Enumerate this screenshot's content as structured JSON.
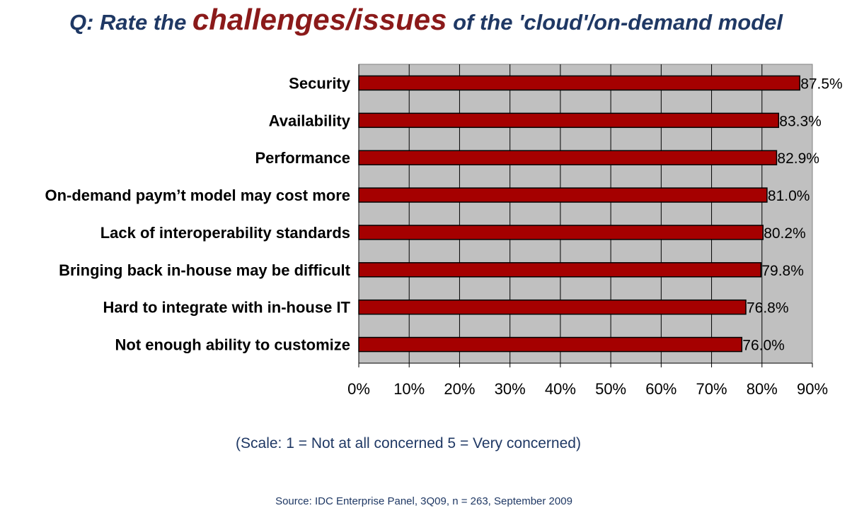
{
  "title": {
    "part1": "Q: Rate the ",
    "emphasis": "challenges/issues",
    "part2": " of the 'cloud'/on-demand model"
  },
  "colors": {
    "bar_fill": "#a50000",
    "plot_background": "#c0c0c0",
    "title_text": "#1f3864",
    "title_emphasis": "#8b1a1a"
  },
  "chart_data": {
    "type": "bar",
    "orientation": "horizontal",
    "categories": [
      "Security",
      "Availability",
      "Performance",
      "On-demand paym’t model may cost more",
      "Lack of interoperability standards",
      "Bringing back in-house may be difficult",
      "Hard to integrate with in-house IT",
      "Not enough ability to customize"
    ],
    "values": [
      87.5,
      83.3,
      82.9,
      81.0,
      80.2,
      79.8,
      76.8,
      76.0
    ],
    "value_labels": [
      "87.5%",
      "83.3%",
      "82.9%",
      "81.0%",
      "80.2%",
      "79.8%",
      "76.8%",
      "76.0%"
    ],
    "x_ticks": [
      "0%",
      "10%",
      "20%",
      "30%",
      "40%",
      "50%",
      "60%",
      "70%",
      "80%",
      "90%"
    ],
    "xlim": [
      0,
      90
    ],
    "grid": true,
    "legend": "none"
  },
  "notes": {
    "scale": "(Scale: 1 = Not at all concerned  5 = Very concerned)",
    "source": "Source: IDC Enterprise Panel, 3Q09, n = 263, September 2009"
  }
}
